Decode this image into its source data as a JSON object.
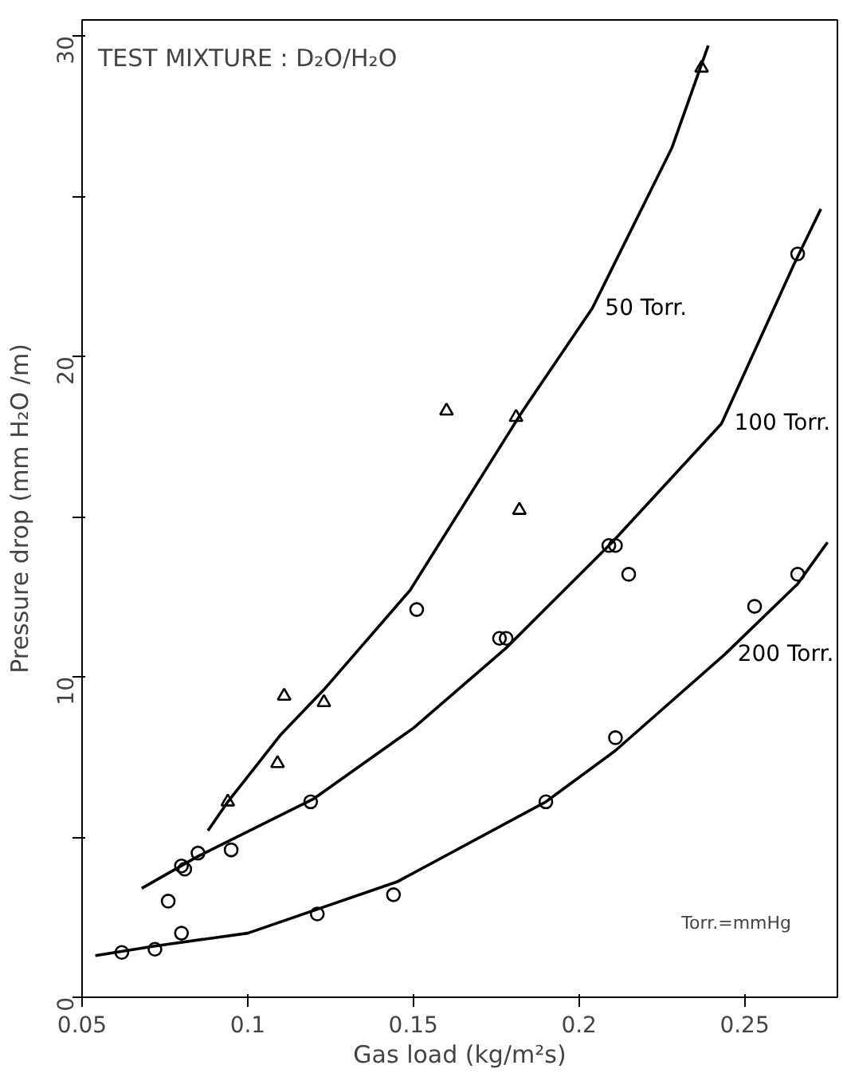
{
  "chart_data": {
    "type": "scatter",
    "xlabel": "Gas load (kg/m²s)",
    "ylabel": "Pressure drop (mm H₂O /m)",
    "xlim": [
      0.05,
      0.278
    ],
    "ylim": [
      0,
      30.5
    ],
    "xticks": [
      0.05,
      0.1,
      0.15,
      0.2,
      0.25
    ],
    "yticks": [
      0,
      {
        "value": 5,
        "label": null
      },
      10,
      {
        "value": 15,
        "label": null
      },
      20,
      {
        "value": 25,
        "label": null
      },
      30
    ],
    "grid": false,
    "legend": false,
    "series": [
      {
        "type": "scatter",
        "marker": "triangle",
        "color": "#000000",
        "x": [
          0.094,
          0.109,
          0.111,
          0.123,
          0.16,
          0.181,
          0.182,
          0.237
        ],
        "values": [
          6.1,
          7.3,
          9.4,
          9.2,
          18.3,
          18.1,
          15.2,
          29.0
        ]
      },
      {
        "type": "scatter",
        "marker": "circle",
        "color": "#000000",
        "x": [
          0.076,
          0.08,
          0.081,
          0.085,
          0.095,
          0.119,
          0.151,
          0.176,
          0.178,
          0.209,
          0.211,
          0.215,
          0.266
        ],
        "values": [
          3.0,
          4.1,
          4.0,
          4.5,
          4.6,
          6.1,
          12.1,
          11.2,
          11.2,
          14.1,
          14.1,
          13.2,
          23.2
        ]
      },
      {
        "type": "scatter",
        "marker": "circle",
        "color": "#000000",
        "x": [
          0.062,
          0.072,
          0.08,
          0.121,
          0.144,
          0.19,
          0.211,
          0.253,
          0.266
        ],
        "values": [
          1.4,
          1.5,
          2.0,
          2.6,
          3.2,
          6.1,
          8.1,
          12.2,
          13.2
        ]
      },
      {
        "type": "line",
        "name": "50 Torr.",
        "color": "#000000",
        "line_style": "solid",
        "x": [
          0.088,
          0.094,
          0.11,
          0.123,
          0.149,
          0.183,
          0.204,
          0.228,
          0.239
        ],
        "values": [
          5.2,
          6.1,
          8.2,
          9.6,
          12.7,
          18.3,
          21.5,
          26.5,
          29.7
        ]
      },
      {
        "type": "line",
        "name": "100 Torr.",
        "color": "#000000",
        "line_style": "solid",
        "x": [
          0.068,
          0.085,
          0.12,
          0.15,
          0.178,
          0.21,
          0.243,
          0.265,
          0.273
        ],
        "values": [
          3.4,
          4.4,
          6.2,
          8.4,
          10.9,
          14.2,
          17.9,
          22.9,
          24.6
        ]
      },
      {
        "type": "line",
        "name": "200 Torr.",
        "color": "#000000",
        "line_style": "solid",
        "x": [
          0.054,
          0.072,
          0.1,
          0.145,
          0.19,
          0.211,
          0.244,
          0.266,
          0.275
        ],
        "values": [
          1.3,
          1.6,
          2.0,
          3.6,
          6.1,
          7.7,
          10.7,
          12.9,
          14.2
        ]
      }
    ],
    "annotations": [
      "TEST MIXTURE : D₂O/H₂O",
      "Torr.=mmHg"
    ]
  }
}
